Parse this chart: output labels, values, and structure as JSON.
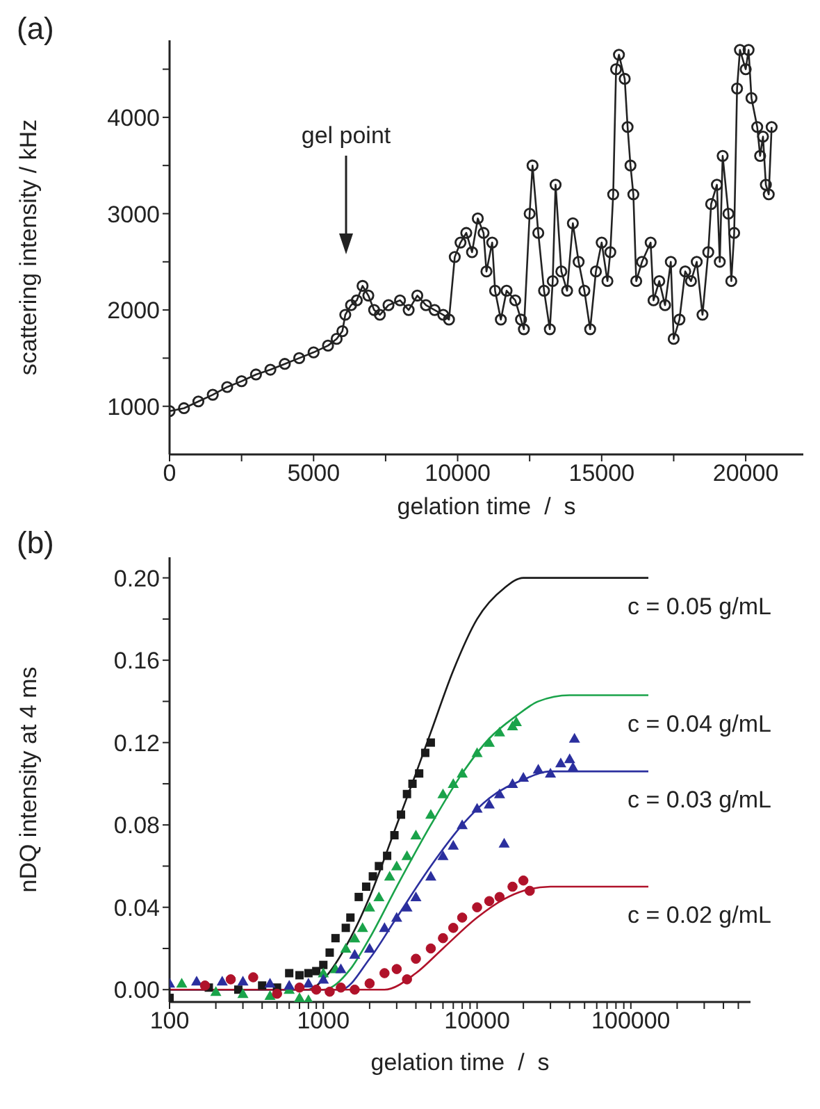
{
  "chart_data": [
    {
      "type": "line",
      "xlabel": "gelation time  /  s",
      "ylabel": "scattering intensity / kHz",
      "marker": "circle",
      "annotations": [
        "(a)",
        "gel point"
      ],
      "xlim": [
        0,
        22000
      ],
      "xticks": [
        0,
        {
          "value": 2500,
          "label": null
        },
        5000,
        {
          "value": 7500,
          "label": null
        },
        10000,
        {
          "value": 12500,
          "label": null
        },
        15000,
        {
          "value": 17500,
          "label": null
        },
        20000
      ],
      "ylim": [
        500,
        4800
      ],
      "yticks": [
        1000,
        {
          "value": 1500,
          "label": null
        },
        2000,
        {
          "value": 2500,
          "label": null
        },
        3000,
        {
          "value": 3500,
          "label": null
        },
        4000,
        {
          "value": 4500,
          "label": null
        }
      ],
      "series": [
        {
          "color": "#222222",
          "x": [
            0,
            500,
            1000,
            1500,
            2000,
            2500,
            3000,
            3500,
            4000,
            4500,
            5000,
            5500,
            5800,
            6000,
            6100,
            6300,
            6500,
            6700,
            6900,
            7100,
            7300,
            7600,
            8000,
            8300,
            8600,
            8900,
            9200,
            9500,
            9700,
            9900,
            10100,
            10300,
            10500,
            10700,
            10900,
            11000,
            11200,
            11300,
            11500,
            11700,
            12000,
            12200,
            12300,
            12500,
            12600,
            12800,
            13000,
            13200,
            13300,
            13400,
            13600,
            13800,
            14000,
            14200,
            14400,
            14600,
            14800,
            15000,
            15200,
            15300,
            15400,
            15500,
            15600,
            15800,
            15900,
            16000,
            16100,
            16200,
            16400,
            16700,
            16800,
            17000,
            17200,
            17400,
            17500,
            17700,
            17900,
            18100,
            18300,
            18500,
            18700,
            18800,
            19000,
            19100,
            19200,
            19400,
            19500,
            19600,
            19700,
            19800,
            20000,
            20100,
            20200,
            20400,
            20500,
            20600,
            20700,
            20800,
            20900
          ],
          "values": [
            950,
            980,
            1050,
            1120,
            1200,
            1260,
            1330,
            1380,
            1440,
            1500,
            1560,
            1630,
            1700,
            1780,
            1950,
            2050,
            2100,
            2250,
            2150,
            2000,
            1950,
            2050,
            2100,
            2000,
            2150,
            2050,
            2000,
            1950,
            1900,
            2550,
            2700,
            2800,
            2600,
            2950,
            2800,
            2400,
            2700,
            2200,
            1900,
            2200,
            2100,
            1900,
            1800,
            3000,
            3500,
            2800,
            2200,
            1800,
            2300,
            3300,
            2400,
            2200,
            2900,
            2500,
            2200,
            1800,
            2400,
            2700,
            2300,
            2600,
            3200,
            4500,
            4650,
            4400,
            3900,
            3500,
            3200,
            2300,
            2500,
            2700,
            2100,
            2300,
            2050,
            2500,
            1700,
            1900,
            2400,
            2300,
            2500,
            1950,
            2600,
            3100,
            3300,
            2500,
            3600,
            3000,
            2300,
            2800,
            4300,
            4700,
            4500,
            4700,
            4200,
            3900,
            3600,
            3800,
            3300,
            3200,
            3900
          ]
        }
      ]
    },
    {
      "type": "scatter",
      "xlabel": "gelation time  /  s",
      "ylabel": "nDQ intensity at 4 ms",
      "log": "x",
      "annotations": [
        "(b)"
      ],
      "xlim": [
        100,
        600000
      ],
      "xticks": [
        100,
        {
          "value": 200,
          "label": null
        },
        {
          "value": 300,
          "label": null
        },
        {
          "value": 400,
          "label": null
        },
        {
          "value": 500,
          "label": null
        },
        {
          "value": 600,
          "label": null
        },
        {
          "value": 700,
          "label": null
        },
        {
          "value": 800,
          "label": null
        },
        {
          "value": 900,
          "label": null
        },
        1000,
        {
          "value": 2000,
          "label": null
        },
        {
          "value": 3000,
          "label": null
        },
        {
          "value": 4000,
          "label": null
        },
        {
          "value": 5000,
          "label": null
        },
        {
          "value": 6000,
          "label": null
        },
        {
          "value": 7000,
          "label": null
        },
        {
          "value": 8000,
          "label": null
        },
        {
          "value": 9000,
          "label": null
        },
        10000,
        {
          "value": 20000,
          "label": null
        },
        {
          "value": 30000,
          "label": null
        },
        {
          "value": 40000,
          "label": null
        },
        {
          "value": 50000,
          "label": null
        },
        {
          "value": 60000,
          "label": null
        },
        {
          "value": 70000,
          "label": null
        },
        {
          "value": 80000,
          "label": null
        },
        {
          "value": 90000,
          "label": null
        },
        100000,
        {
          "value": 200000,
          "label": null
        },
        {
          "value": 300000,
          "label": null
        },
        {
          "value": 400000,
          "label": null
        },
        {
          "value": 500000,
          "label": null
        }
      ],
      "ylim": [
        -0.006,
        0.21
      ],
      "yticks": [
        {
          "value": 0,
          "label": "0.00"
        },
        {
          "value": 0.02,
          "label": null
        },
        {
          "value": 0.04,
          "label": "0.04"
        },
        {
          "value": 0.06,
          "label": null
        },
        {
          "value": 0.08,
          "label": "0.08"
        },
        {
          "value": 0.1,
          "label": null
        },
        {
          "value": 0.12,
          "label": "0.12"
        },
        {
          "value": 0.14,
          "label": null
        },
        {
          "value": 0.16,
          "label": "0.16"
        },
        {
          "value": 0.18,
          "label": null
        },
        {
          "value": 0.2,
          "label": "0.20"
        }
      ],
      "series": [
        {
          "color": "#1a1a1a",
          "marker": "square",
          "x": [
            100,
            180,
            280,
            400,
            500,
            600,
            700,
            800,
            900,
            1000,
            1100,
            1200,
            1400,
            1500,
            1700,
            1900,
            2100,
            2300,
            2600,
            2900,
            3200,
            3500,
            3800,
            4200,
            4600,
            5000
          ],
          "values": [
            -0.004,
            0.001,
            0.0,
            0.002,
            0.001,
            0.008,
            0.007,
            0.008,
            0.009,
            0.012,
            0.018,
            0.025,
            0.03,
            0.035,
            0.045,
            0.05,
            0.055,
            0.06,
            0.065,
            0.075,
            0.085,
            0.095,
            0.1,
            0.105,
            0.115,
            0.12
          ]
        },
        {
          "color": "#1aa34a",
          "marker": "triangle",
          "x": [
            120,
            200,
            300,
            450,
            600,
            700,
            800,
            1000,
            1200,
            1400,
            1600,
            1800,
            2000,
            2300,
            2700,
            3000,
            3500,
            4000,
            5000,
            6000,
            7000,
            8000,
            10000,
            12000,
            14000,
            17000,
            18000
          ],
          "values": [
            0.003,
            -0.001,
            -0.002,
            -0.003,
            0.0,
            -0.004,
            -0.005,
            0.008,
            0.01,
            0.02,
            0.025,
            0.03,
            0.04,
            0.045,
            0.055,
            0.06,
            0.065,
            0.075,
            0.085,
            0.095,
            0.1,
            0.105,
            0.115,
            0.12,
            0.125,
            0.128,
            0.13
          ]
        },
        {
          "color": "#2b2f9e",
          "marker": "triangle",
          "x": [
            100,
            150,
            220,
            300,
            450,
            600,
            800,
            1000,
            1300,
            1600,
            2000,
            2500,
            3000,
            3500,
            4000,
            5000,
            6000,
            7000,
            8000,
            10000,
            12000,
            14000,
            15000,
            17000,
            20000,
            25000,
            30000,
            35000,
            40000,
            42000,
            43000
          ],
          "values": [
            0.003,
            0.004,
            0.004,
            0.004,
            0.003,
            0.002,
            0.003,
            0.005,
            0.01,
            0.017,
            0.02,
            0.03,
            0.035,
            0.04,
            0.045,
            0.055,
            0.065,
            0.07,
            0.08,
            0.088,
            0.09,
            0.095,
            0.071,
            0.1,
            0.103,
            0.107,
            0.105,
            0.11,
            0.112,
            0.108,
            0.122
          ]
        },
        {
          "color": "#b0122a",
          "marker": "circle",
          "x": [
            170,
            250,
            350,
            500,
            700,
            900,
            1100,
            1300,
            1600,
            2000,
            2500,
            3000,
            3500,
            4000,
            5000,
            6000,
            7000,
            8000,
            10000,
            12000,
            14000,
            17000,
            20000,
            22000
          ],
          "values": [
            0.002,
            0.005,
            0.006,
            -0.002,
            0.001,
            0.0,
            -0.001,
            0.001,
            0.0,
            0.003,
            0.008,
            0.01,
            0.005,
            0.015,
            0.02,
            0.025,
            0.03,
            0.035,
            0.04,
            0.043,
            0.045,
            0.05,
            0.053,
            0.048
          ]
        },
        {
          "type": "line",
          "name": "c = 0.05 g/mL",
          "color": "#1a1a1a",
          "marker": "none",
          "x": [
            100,
            800,
            1000,
            1500,
            2000,
            3000,
            4000,
            5000,
            7000,
            10000,
            15000,
            20000,
            130000
          ],
          "values": [
            0,
            0,
            0.005,
            0.025,
            0.045,
            0.08,
            0.105,
            0.125,
            0.155,
            0.18,
            0.195,
            0.2,
            0.2
          ]
        },
        {
          "type": "line",
          "name": "c = 0.04 g/mL",
          "color": "#1aa34a",
          "marker": "none",
          "x": [
            100,
            1000,
            1500,
            2000,
            3000,
            5000,
            8000,
            12000,
            18000,
            25000,
            40000,
            130000
          ],
          "values": [
            0,
            0,
            0.01,
            0.025,
            0.05,
            0.08,
            0.105,
            0.122,
            0.133,
            0.14,
            0.143,
            0.143
          ]
        },
        {
          "type": "line",
          "name": "c = 0.03 g/mL",
          "color": "#2b2f9e",
          "marker": "none",
          "x": [
            100,
            1300,
            2000,
            3000,
            5000,
            8000,
            12000,
            20000,
            30000,
            130000
          ],
          "values": [
            0,
            0,
            0.015,
            0.035,
            0.06,
            0.08,
            0.093,
            0.102,
            0.106,
            0.106
          ]
        },
        {
          "type": "line",
          "name": "c = 0.02 g/mL",
          "color": "#b0122a",
          "marker": "none",
          "x": [
            100,
            2500,
            4000,
            6000,
            10000,
            15000,
            20000,
            30000,
            130000
          ],
          "values": [
            0,
            0,
            0.008,
            0.02,
            0.035,
            0.044,
            0.048,
            0.05,
            0.05
          ]
        }
      ]
    }
  ]
}
